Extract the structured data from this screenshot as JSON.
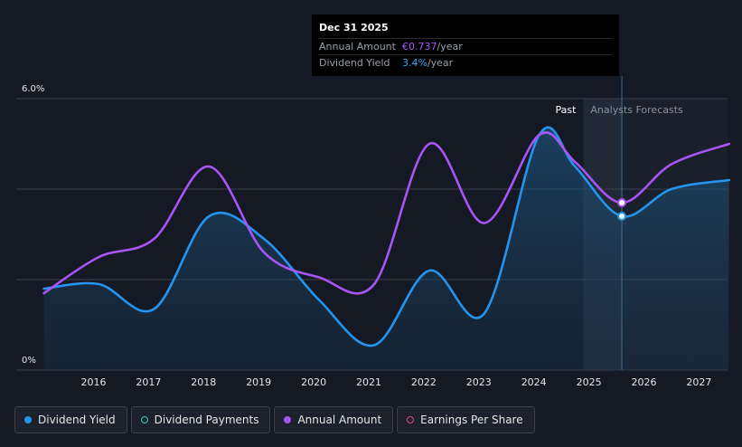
{
  "tooltip": {
    "date": "Dec 31 2025",
    "rows": [
      {
        "label": "Annual Amount",
        "value": "€0.737",
        "unit": "/year"
      },
      {
        "label": "Dividend Yield",
        "value": "3.4%",
        "unit": "/year"
      }
    ]
  },
  "legend": [
    {
      "label": "Dividend Yield",
      "color": "#2394f0",
      "filled": true
    },
    {
      "label": "Dividend Payments",
      "color": "#2dd4bf",
      "filled": false
    },
    {
      "label": "Annual Amount",
      "color": "#a855f7",
      "filled": true
    },
    {
      "label": "Earnings Per Share",
      "color": "#e0479e",
      "filled": false
    }
  ],
  "chart_data": {
    "type": "line",
    "x_ticks": [
      "2016",
      "2017",
      "2018",
      "2019",
      "2020",
      "2021",
      "2022",
      "2023",
      "2024",
      "2025",
      "2026",
      "2027"
    ],
    "y_ticks": [
      "0%",
      "6.0%"
    ],
    "ylim": [
      0,
      6.0
    ],
    "regions": {
      "past": "Past",
      "forecast": "Analysts Forecasts"
    },
    "series": [
      {
        "name": "Dividend Yield",
        "color": "#2394f0",
        "points": [
          [
            2015.5,
            1.8
          ],
          [
            2016.5,
            1.9
          ],
          [
            2017.5,
            1.35
          ],
          [
            2018.5,
            3.4
          ],
          [
            2019.5,
            2.9
          ],
          [
            2020.5,
            1.55
          ],
          [
            2021.5,
            0.55
          ],
          [
            2022.5,
            2.2
          ],
          [
            2023.5,
            1.25
          ],
          [
            2024.5,
            5.2
          ],
          [
            2025.15,
            4.5
          ],
          [
            2026.0,
            3.4
          ],
          [
            2026.9,
            4.0
          ],
          [
            2027.95,
            4.2
          ]
        ]
      },
      {
        "name": "Annual Amount",
        "color": "#a855f7",
        "points": [
          [
            2015.5,
            1.7
          ],
          [
            2016.5,
            2.5
          ],
          [
            2017.5,
            2.9
          ],
          [
            2018.5,
            4.5
          ],
          [
            2019.5,
            2.6
          ],
          [
            2020.5,
            2.05
          ],
          [
            2021.5,
            1.9
          ],
          [
            2022.5,
            5.0
          ],
          [
            2023.5,
            3.25
          ],
          [
            2024.5,
            5.2
          ],
          [
            2025.15,
            4.6
          ],
          [
            2026.0,
            3.7
          ],
          [
            2026.9,
            4.55
          ],
          [
            2027.95,
            5.0
          ]
        ]
      }
    ]
  }
}
